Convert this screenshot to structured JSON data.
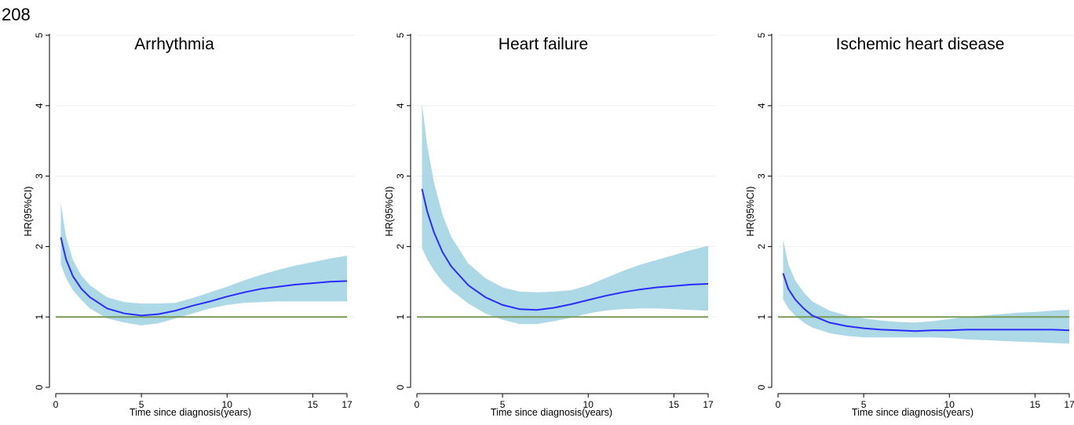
{
  "page_label": "208",
  "colors": {
    "band": "#add8e6",
    "line": "#2b2bff",
    "reference": "#7a9a5a",
    "grid": "#eeeeee",
    "axis": "#000000"
  },
  "chart_data": [
    {
      "type": "line",
      "title": "Arrhythmia",
      "xlabel": "Time since diagnosis(years)",
      "ylabel": "HR(95%CI)",
      "xlim": [
        0,
        17
      ],
      "ylim": [
        0,
        5
      ],
      "xticks": [
        0,
        5,
        10,
        15,
        17
      ],
      "yticks": [
        0,
        1,
        2,
        3,
        4,
        5
      ],
      "grid": true,
      "reference_line": 1,
      "series": [
        {
          "x": [
            0.3,
            0.6,
            1,
            1.5,
            2,
            3,
            4,
            5,
            6,
            7,
            8,
            9,
            10,
            11,
            12,
            13,
            14,
            15,
            16,
            17
          ],
          "y": [
            2.13,
            1.82,
            1.58,
            1.4,
            1.28,
            1.12,
            1.05,
            1.02,
            1.04,
            1.09,
            1.16,
            1.22,
            1.29,
            1.35,
            1.4,
            1.43,
            1.46,
            1.48,
            1.5,
            1.51
          ],
          "lower": [
            1.75,
            1.55,
            1.38,
            1.24,
            1.12,
            0.98,
            0.92,
            0.88,
            0.91,
            0.98,
            1.05,
            1.12,
            1.17,
            1.2,
            1.21,
            1.22,
            1.22,
            1.22,
            1.22,
            1.22
          ],
          "upper": [
            2.62,
            2.14,
            1.81,
            1.59,
            1.45,
            1.28,
            1.21,
            1.19,
            1.19,
            1.2,
            1.27,
            1.35,
            1.43,
            1.52,
            1.6,
            1.67,
            1.73,
            1.78,
            1.83,
            1.87
          ]
        }
      ]
    },
    {
      "type": "line",
      "title": "Heart failure",
      "xlabel": "Time since diagnosis(years)",
      "ylabel": "HR(95%CI)",
      "xlim": [
        0,
        17
      ],
      "ylim": [
        0,
        5
      ],
      "xticks": [
        0,
        5,
        10,
        15,
        17
      ],
      "yticks": [
        0,
        1,
        2,
        3,
        4,
        5
      ],
      "grid": true,
      "reference_line": 1,
      "series": [
        {
          "x": [
            0.3,
            0.6,
            1,
            1.5,
            2,
            3,
            4,
            5,
            6,
            7,
            8,
            9,
            10,
            11,
            12,
            13,
            14,
            15,
            16,
            17
          ],
          "y": [
            2.82,
            2.5,
            2.2,
            1.92,
            1.72,
            1.45,
            1.28,
            1.17,
            1.11,
            1.1,
            1.13,
            1.18,
            1.24,
            1.3,
            1.35,
            1.39,
            1.42,
            1.44,
            1.46,
            1.47
          ],
          "lower": [
            1.98,
            1.82,
            1.66,
            1.5,
            1.38,
            1.19,
            1.05,
            0.96,
            0.9,
            0.9,
            0.94,
            0.99,
            1.05,
            1.09,
            1.11,
            1.12,
            1.12,
            1.11,
            1.1,
            1.09
          ],
          "upper": [
            4.03,
            3.44,
            2.91,
            2.45,
            2.14,
            1.76,
            1.55,
            1.42,
            1.36,
            1.35,
            1.36,
            1.38,
            1.45,
            1.55,
            1.65,
            1.74,
            1.81,
            1.88,
            1.95,
            2.01
          ]
        }
      ]
    },
    {
      "type": "line",
      "title": "Ischemic heart disease",
      "xlabel": "Time since diagnosis(years)",
      "ylabel": "HR(95%CI)",
      "xlim": [
        0,
        17
      ],
      "ylim": [
        0,
        5
      ],
      "xticks": [
        0,
        5,
        10,
        15,
        17
      ],
      "yticks": [
        0,
        1,
        2,
        3,
        4,
        5
      ],
      "grid": true,
      "reference_line": 1,
      "series": [
        {
          "x": [
            0.3,
            0.6,
            1,
            1.5,
            2,
            3,
            4,
            5,
            6,
            7,
            8,
            9,
            10,
            11,
            12,
            13,
            14,
            15,
            16,
            17
          ],
          "y": [
            1.62,
            1.4,
            1.25,
            1.12,
            1.02,
            0.92,
            0.87,
            0.84,
            0.82,
            0.81,
            0.8,
            0.81,
            0.81,
            0.82,
            0.82,
            0.82,
            0.82,
            0.82,
            0.82,
            0.81
          ],
          "lower": [
            1.25,
            1.12,
            1.02,
            0.92,
            0.85,
            0.77,
            0.73,
            0.71,
            0.71,
            0.71,
            0.71,
            0.71,
            0.7,
            0.68,
            0.67,
            0.66,
            0.65,
            0.64,
            0.63,
            0.62
          ],
          "upper": [
            2.1,
            1.75,
            1.52,
            1.35,
            1.22,
            1.09,
            1.02,
            0.98,
            0.95,
            0.93,
            0.92,
            0.94,
            0.97,
            1.0,
            1.02,
            1.04,
            1.06,
            1.07,
            1.09,
            1.1
          ]
        }
      ]
    }
  ]
}
